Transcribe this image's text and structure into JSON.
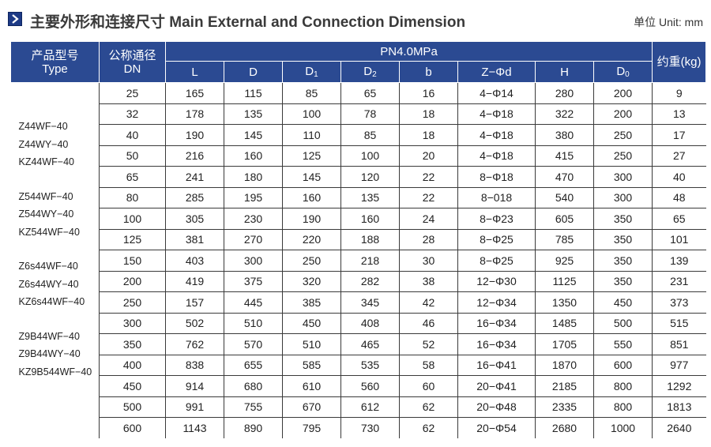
{
  "header": {
    "title": "主要外形和连接尺寸 Main External and Connection Dimension",
    "unit": "单位 Unit: mm"
  },
  "table": {
    "col_type": [
      "产品型号",
      "Type"
    ],
    "col_dn": [
      "公称通径",
      "DN"
    ],
    "pressure_group": "PN4.0MPa",
    "col_weight": "约重(kg)",
    "sub_columns": [
      "L",
      "D",
      "D1",
      "D2",
      "b",
      "Z−Φd",
      "H",
      "D0"
    ],
    "type_groups": [
      [
        "Z44WF−40",
        "Z44WY−40",
        "KZ44WF−40"
      ],
      [
        "Z544WF−40",
        "Z544WY−40",
        "KZ544WF−40"
      ],
      [
        "Z6s44WF−40",
        "Z6s44WY−40",
        "KZ6s44WF−40"
      ],
      [
        "Z9B44WF−40",
        "Z9B44WY−40",
        "KZ9B544WF−40"
      ]
    ],
    "rows": [
      [
        "25",
        "165",
        "115",
        "85",
        "65",
        "16",
        "4−Φ14",
        "280",
        "200",
        "9"
      ],
      [
        "32",
        "178",
        "135",
        "100",
        "78",
        "18",
        "4−Φ18",
        "322",
        "200",
        "13"
      ],
      [
        "40",
        "190",
        "145",
        "110",
        "85",
        "18",
        "4−Φ18",
        "380",
        "250",
        "17"
      ],
      [
        "50",
        "216",
        "160",
        "125",
        "100",
        "20",
        "4−Φ18",
        "415",
        "250",
        "27"
      ],
      [
        "65",
        "241",
        "180",
        "145",
        "120",
        "22",
        "8−Φ18",
        "470",
        "300",
        "40"
      ],
      [
        "80",
        "285",
        "195",
        "160",
        "135",
        "22",
        "8−018",
        "540",
        "300",
        "48"
      ],
      [
        "100",
        "305",
        "230",
        "190",
        "160",
        "24",
        "8−Φ23",
        "605",
        "350",
        "65"
      ],
      [
        "125",
        "381",
        "270",
        "220",
        "188",
        "28",
        "8−Φ25",
        "785",
        "350",
        "101"
      ],
      [
        "150",
        "403",
        "300",
        "250",
        "218",
        "30",
        "8−Φ25",
        "925",
        "350",
        "139"
      ],
      [
        "200",
        "419",
        "375",
        "320",
        "282",
        "38",
        "12−Φ30",
        "1125",
        "350",
        "231"
      ],
      [
        "250",
        "157",
        "445",
        "385",
        "345",
        "42",
        "12−Φ34",
        "1350",
        "450",
        "373"
      ],
      [
        "300",
        "502",
        "510",
        "450",
        "408",
        "46",
        "16−Φ34",
        "1485",
        "500",
        "515"
      ],
      [
        "350",
        "762",
        "570",
        "510",
        "465",
        "52",
        "16−Φ34",
        "1705",
        "550",
        "851"
      ],
      [
        "400",
        "838",
        "655",
        "585",
        "535",
        "58",
        "16−Φ41",
        "1870",
        "600",
        "977"
      ],
      [
        "450",
        "914",
        "680",
        "610",
        "560",
        "60",
        "20−Φ41",
        "2185",
        "800",
        "1292"
      ],
      [
        "500",
        "991",
        "755",
        "670",
        "612",
        "62",
        "20−Φ48",
        "2335",
        "800",
        "1813"
      ],
      [
        "600",
        "1143",
        "890",
        "795",
        "730",
        "62",
        "20−Φ54",
        "2680",
        "1000",
        "2640"
      ]
    ]
  }
}
